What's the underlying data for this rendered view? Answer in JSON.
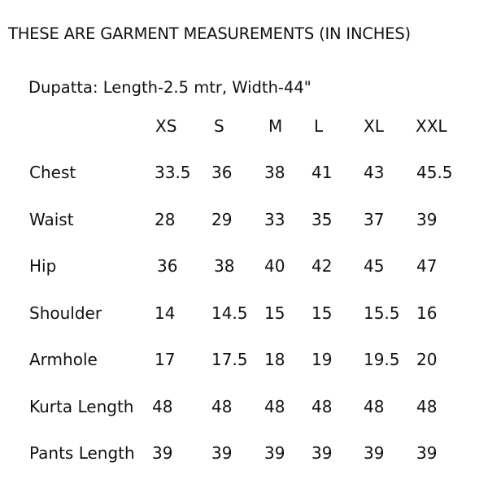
{
  "title": "THESE ARE GARMENT MEASUREMENTS (IN INCHES)",
  "dupatta": "Dupatta: Length-2.5 mtr, Width-44\"",
  "table": {
    "headers": [
      "XS",
      "S",
      "M",
      "L",
      "XL",
      "XXL"
    ],
    "rows": [
      {
        "label": "Chest",
        "values": [
          "33.5",
          "36",
          "38",
          "41",
          "43",
          "45.5"
        ]
      },
      {
        "label": "Waist",
        "values": [
          "28",
          "29",
          "33",
          "35",
          "37",
          "39"
        ]
      },
      {
        "label": "Hip",
        "values": [
          "36",
          "38",
          "40",
          "42",
          "45",
          "47"
        ]
      },
      {
        "label": "Shoulder",
        "values": [
          "14",
          "14.5",
          "15",
          "15",
          "15.5",
          "16"
        ]
      },
      {
        "label": "Armhole",
        "values": [
          "17",
          "17.5",
          "18",
          "19",
          "19.5",
          "20"
        ]
      },
      {
        "label": "Kurta Length",
        "values": [
          "48",
          "48",
          "48",
          "48",
          "48",
          "48"
        ]
      },
      {
        "label": "Pants Length",
        "values": [
          "39",
          "39",
          "39",
          "39",
          "39",
          "39"
        ]
      }
    ]
  }
}
